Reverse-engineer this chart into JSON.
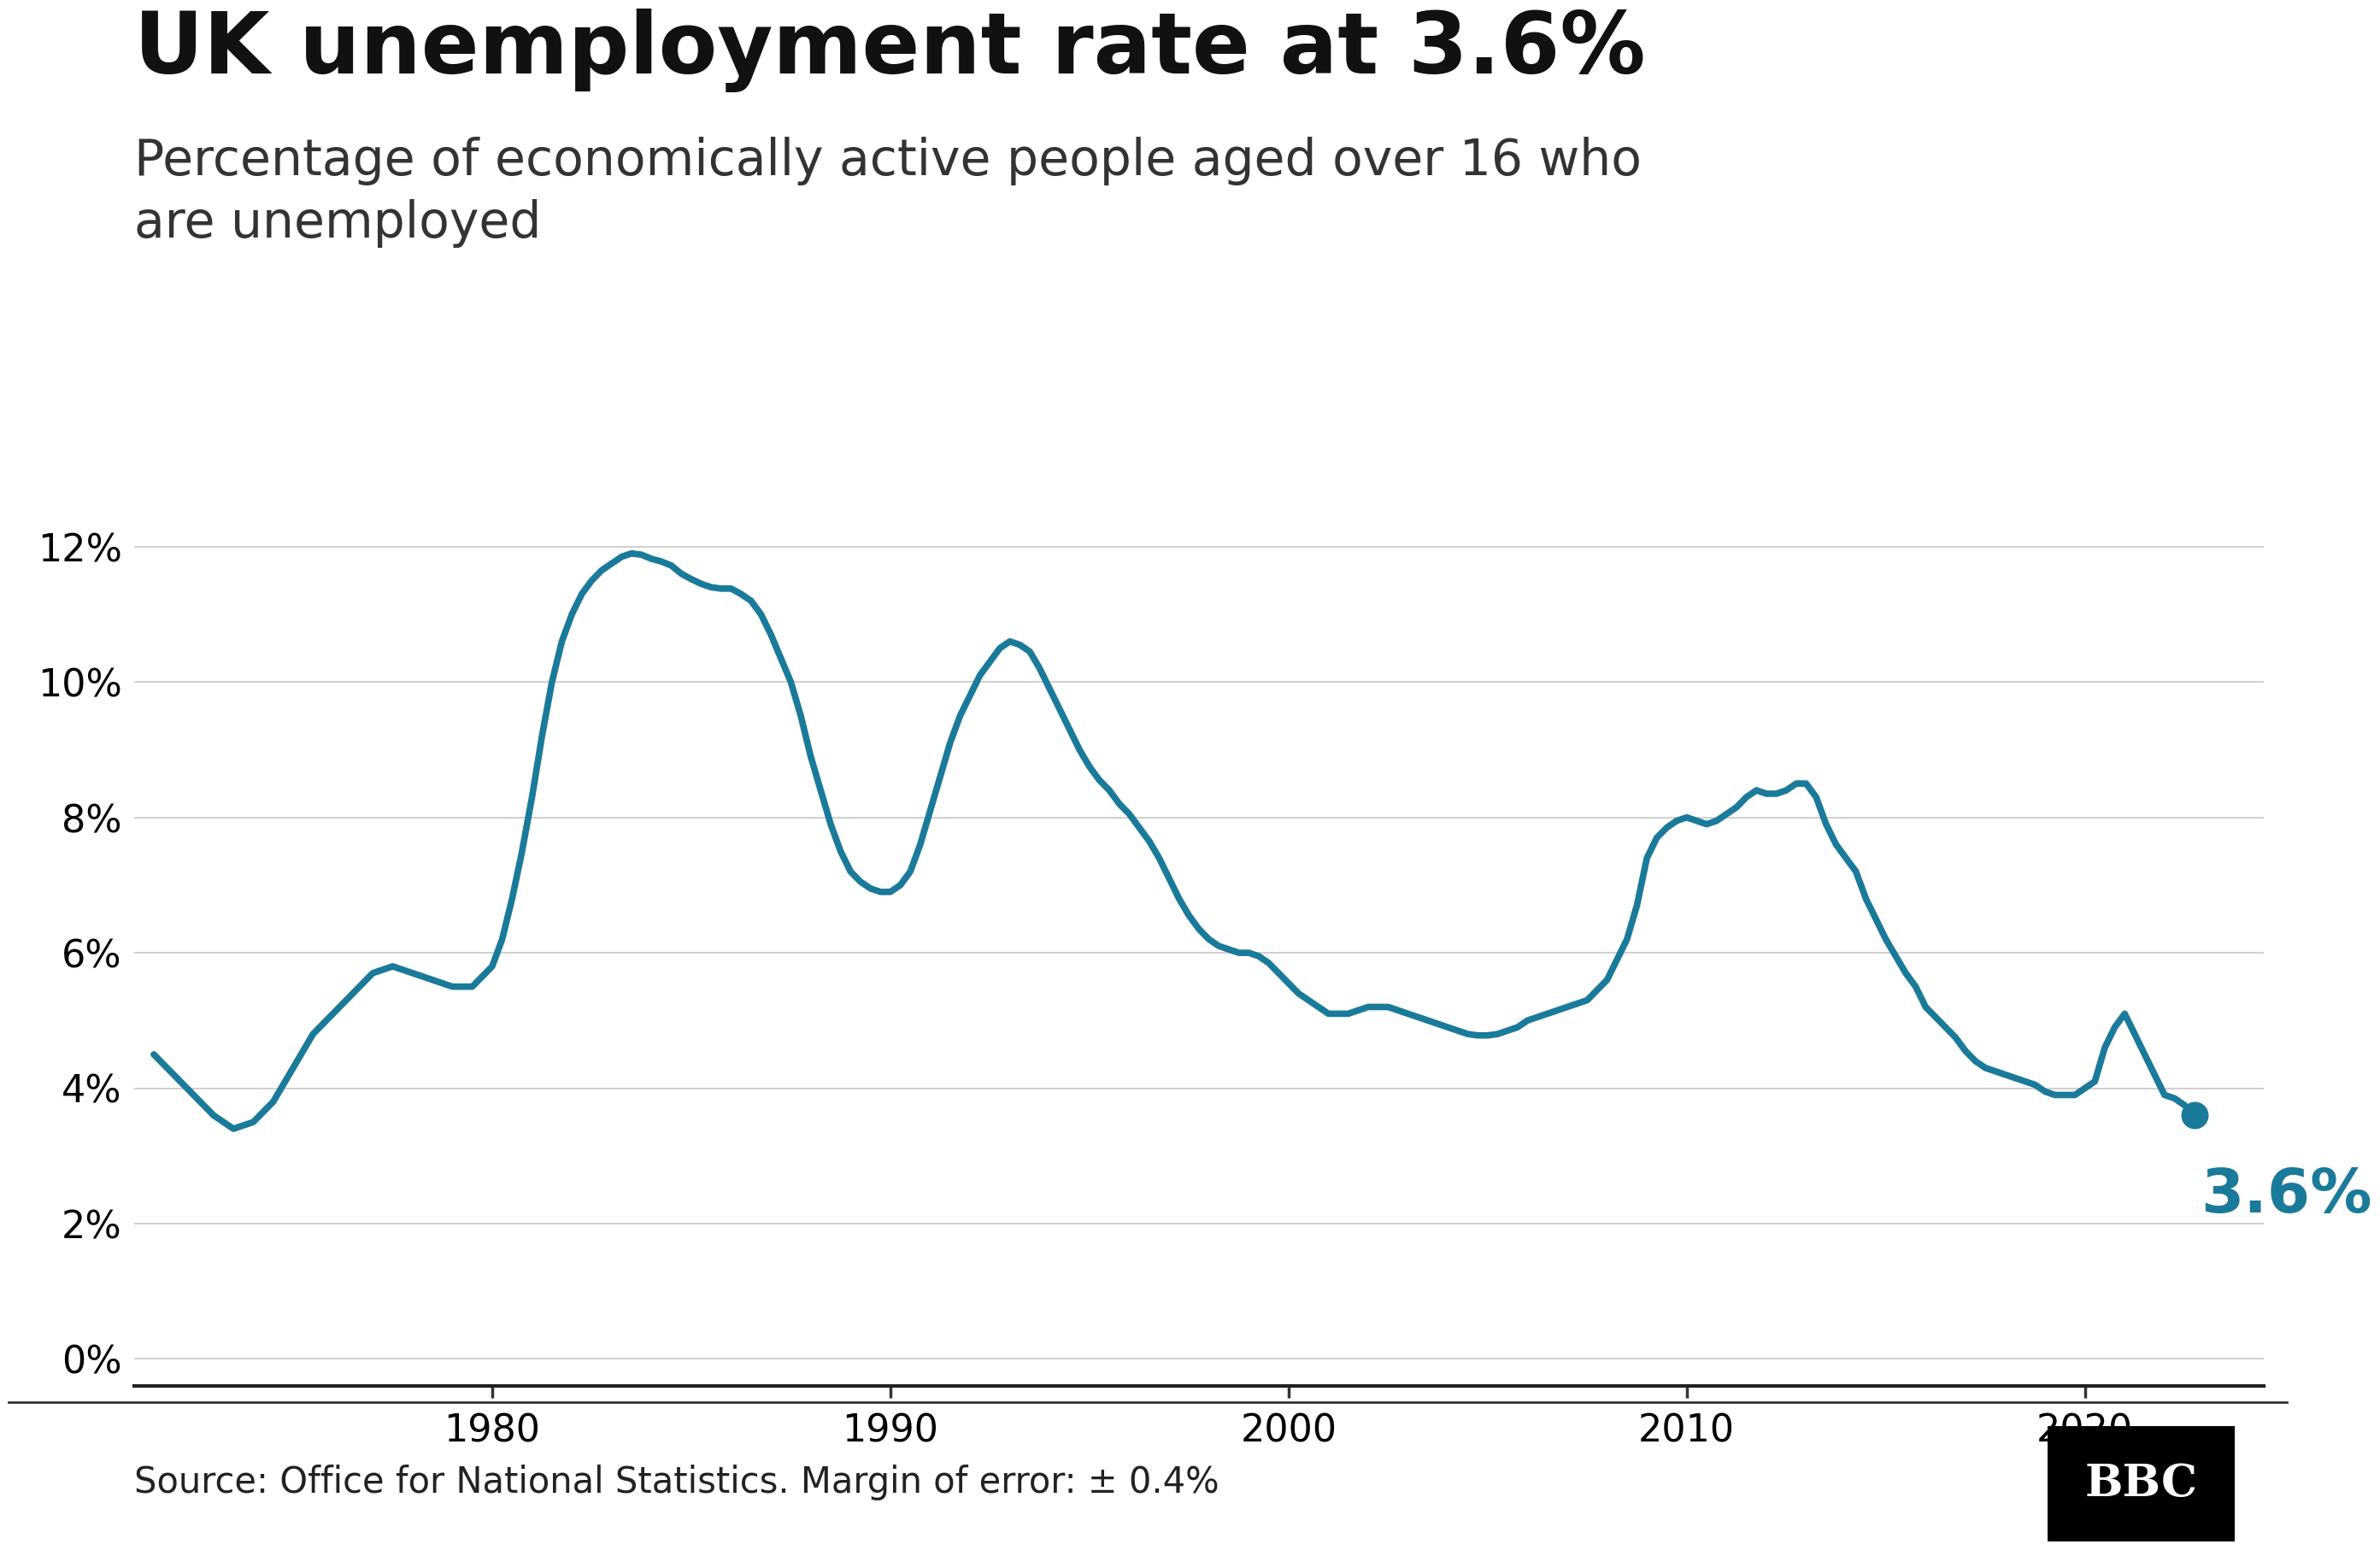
{
  "title": "UK unemployment rate at 3.6%",
  "subtitle": "Percentage of economically active people aged over 16 who\nare unemployed",
  "source_text": "Source: Office for National Statistics. Margin of error: ± 0.4%",
  "line_color": "#1a7a99",
  "end_point_color": "#1a7a99",
  "annotation_text": "3.6%",
  "annotation_color": "#1a7a99",
  "background_color": "#ffffff",
  "grid_color": "#cccccc",
  "axis_color": "#333333",
  "title_fontsize": 72,
  "subtitle_fontsize": 42,
  "source_fontsize": 30,
  "annotation_fontsize": 52,
  "ytick_values": [
    0,
    2,
    4,
    6,
    8,
    10,
    12
  ],
  "ylim": [
    -0.4,
    13.8
  ],
  "xlim_start": 1971.0,
  "xlim_end": 2024.5,
  "xtick_values": [
    1980,
    1990,
    2000,
    2010,
    2020
  ],
  "line_width": 5.5,
  "data": [
    [
      1971.5,
      4.5
    ],
    [
      1972.0,
      4.2
    ],
    [
      1972.5,
      3.9
    ],
    [
      1973.0,
      3.6
    ],
    [
      1973.5,
      3.4
    ],
    [
      1974.0,
      3.5
    ],
    [
      1974.5,
      3.8
    ],
    [
      1975.0,
      4.3
    ],
    [
      1975.5,
      4.8
    ],
    [
      1976.0,
      5.1
    ],
    [
      1976.5,
      5.4
    ],
    [
      1977.0,
      5.7
    ],
    [
      1977.5,
      5.8
    ],
    [
      1978.0,
      5.7
    ],
    [
      1978.5,
      5.6
    ],
    [
      1979.0,
      5.5
    ],
    [
      1979.5,
      5.5
    ],
    [
      1980.0,
      5.8
    ],
    [
      1980.25,
      6.2
    ],
    [
      1980.5,
      6.8
    ],
    [
      1980.75,
      7.5
    ],
    [
      1981.0,
      8.3
    ],
    [
      1981.25,
      9.2
    ],
    [
      1981.5,
      10.0
    ],
    [
      1981.75,
      10.6
    ],
    [
      1982.0,
      11.0
    ],
    [
      1982.25,
      11.3
    ],
    [
      1982.5,
      11.5
    ],
    [
      1982.75,
      11.65
    ],
    [
      1983.0,
      11.75
    ],
    [
      1983.25,
      11.85
    ],
    [
      1983.5,
      11.9
    ],
    [
      1983.75,
      11.88
    ],
    [
      1984.0,
      11.82
    ],
    [
      1984.25,
      11.78
    ],
    [
      1984.5,
      11.72
    ],
    [
      1984.75,
      11.6
    ],
    [
      1985.0,
      11.52
    ],
    [
      1985.25,
      11.45
    ],
    [
      1985.5,
      11.4
    ],
    [
      1985.75,
      11.38
    ],
    [
      1986.0,
      11.38
    ],
    [
      1986.25,
      11.3
    ],
    [
      1986.5,
      11.2
    ],
    [
      1986.75,
      11.0
    ],
    [
      1987.0,
      10.7
    ],
    [
      1987.25,
      10.35
    ],
    [
      1987.5,
      10.0
    ],
    [
      1987.75,
      9.5
    ],
    [
      1988.0,
      8.9
    ],
    [
      1988.25,
      8.4
    ],
    [
      1988.5,
      7.9
    ],
    [
      1988.75,
      7.5
    ],
    [
      1989.0,
      7.2
    ],
    [
      1989.25,
      7.05
    ],
    [
      1989.5,
      6.95
    ],
    [
      1989.75,
      6.9
    ],
    [
      1990.0,
      6.9
    ],
    [
      1990.25,
      7.0
    ],
    [
      1990.5,
      7.2
    ],
    [
      1990.75,
      7.6
    ],
    [
      1991.0,
      8.1
    ],
    [
      1991.25,
      8.6
    ],
    [
      1991.5,
      9.1
    ],
    [
      1991.75,
      9.5
    ],
    [
      1992.0,
      9.8
    ],
    [
      1992.25,
      10.1
    ],
    [
      1992.5,
      10.3
    ],
    [
      1992.75,
      10.5
    ],
    [
      1993.0,
      10.6
    ],
    [
      1993.25,
      10.55
    ],
    [
      1993.5,
      10.45
    ],
    [
      1993.75,
      10.2
    ],
    [
      1994.0,
      9.9
    ],
    [
      1994.25,
      9.6
    ],
    [
      1994.5,
      9.3
    ],
    [
      1994.75,
      9.0
    ],
    [
      1995.0,
      8.75
    ],
    [
      1995.25,
      8.55
    ],
    [
      1995.5,
      8.4
    ],
    [
      1995.75,
      8.2
    ],
    [
      1996.0,
      8.05
    ],
    [
      1996.25,
      7.85
    ],
    [
      1996.5,
      7.65
    ],
    [
      1996.75,
      7.4
    ],
    [
      1997.0,
      7.1
    ],
    [
      1997.25,
      6.8
    ],
    [
      1997.5,
      6.55
    ],
    [
      1997.75,
      6.35
    ],
    [
      1998.0,
      6.2
    ],
    [
      1998.25,
      6.1
    ],
    [
      1998.5,
      6.05
    ],
    [
      1998.75,
      6.0
    ],
    [
      1999.0,
      6.0
    ],
    [
      1999.25,
      5.95
    ],
    [
      1999.5,
      5.85
    ],
    [
      1999.75,
      5.7
    ],
    [
      2000.0,
      5.55
    ],
    [
      2000.25,
      5.4
    ],
    [
      2000.5,
      5.3
    ],
    [
      2000.75,
      5.2
    ],
    [
      2001.0,
      5.1
    ],
    [
      2001.25,
      5.1
    ],
    [
      2001.5,
      5.1
    ],
    [
      2001.75,
      5.15
    ],
    [
      2002.0,
      5.2
    ],
    [
      2002.25,
      5.2
    ],
    [
      2002.5,
      5.2
    ],
    [
      2002.75,
      5.15
    ],
    [
      2003.0,
      5.1
    ],
    [
      2003.25,
      5.05
    ],
    [
      2003.5,
      5.0
    ],
    [
      2003.75,
      4.95
    ],
    [
      2004.0,
      4.9
    ],
    [
      2004.25,
      4.85
    ],
    [
      2004.5,
      4.8
    ],
    [
      2004.75,
      4.78
    ],
    [
      2005.0,
      4.78
    ],
    [
      2005.25,
      4.8
    ],
    [
      2005.5,
      4.85
    ],
    [
      2005.75,
      4.9
    ],
    [
      2006.0,
      5.0
    ],
    [
      2006.25,
      5.05
    ],
    [
      2006.5,
      5.1
    ],
    [
      2006.75,
      5.15
    ],
    [
      2007.0,
      5.2
    ],
    [
      2007.25,
      5.25
    ],
    [
      2007.5,
      5.3
    ],
    [
      2007.75,
      5.45
    ],
    [
      2008.0,
      5.6
    ],
    [
      2008.25,
      5.9
    ],
    [
      2008.5,
      6.2
    ],
    [
      2008.75,
      6.7
    ],
    [
      2009.0,
      7.4
    ],
    [
      2009.25,
      7.7
    ],
    [
      2009.5,
      7.85
    ],
    [
      2009.75,
      7.95
    ],
    [
      2010.0,
      8.0
    ],
    [
      2010.25,
      7.95
    ],
    [
      2010.5,
      7.9
    ],
    [
      2010.75,
      7.95
    ],
    [
      2011.0,
      8.05
    ],
    [
      2011.25,
      8.15
    ],
    [
      2011.5,
      8.3
    ],
    [
      2011.75,
      8.4
    ],
    [
      2012.0,
      8.35
    ],
    [
      2012.25,
      8.35
    ],
    [
      2012.5,
      8.4
    ],
    [
      2012.75,
      8.5
    ],
    [
      2013.0,
      8.5
    ],
    [
      2013.25,
      8.3
    ],
    [
      2013.5,
      7.9
    ],
    [
      2013.75,
      7.6
    ],
    [
      2014.0,
      7.4
    ],
    [
      2014.25,
      7.2
    ],
    [
      2014.5,
      6.8
    ],
    [
      2014.75,
      6.5
    ],
    [
      2015.0,
      6.2
    ],
    [
      2015.25,
      5.95
    ],
    [
      2015.5,
      5.7
    ],
    [
      2015.75,
      5.5
    ],
    [
      2016.0,
      5.2
    ],
    [
      2016.25,
      5.05
    ],
    [
      2016.5,
      4.9
    ],
    [
      2016.75,
      4.75
    ],
    [
      2017.0,
      4.55
    ],
    [
      2017.25,
      4.4
    ],
    [
      2017.5,
      4.3
    ],
    [
      2017.75,
      4.25
    ],
    [
      2018.0,
      4.2
    ],
    [
      2018.25,
      4.15
    ],
    [
      2018.5,
      4.1
    ],
    [
      2018.75,
      4.05
    ],
    [
      2019.0,
      3.95
    ],
    [
      2019.25,
      3.9
    ],
    [
      2019.5,
      3.9
    ],
    [
      2019.75,
      3.9
    ],
    [
      2020.0,
      4.0
    ],
    [
      2020.25,
      4.1
    ],
    [
      2020.5,
      4.6
    ],
    [
      2020.75,
      4.9
    ],
    [
      2021.0,
      5.1
    ],
    [
      2021.25,
      4.8
    ],
    [
      2021.5,
      4.5
    ],
    [
      2021.75,
      4.2
    ],
    [
      2022.0,
      3.9
    ],
    [
      2022.25,
      3.85
    ],
    [
      2022.5,
      3.75
    ],
    [
      2022.75,
      3.6
    ]
  ]
}
